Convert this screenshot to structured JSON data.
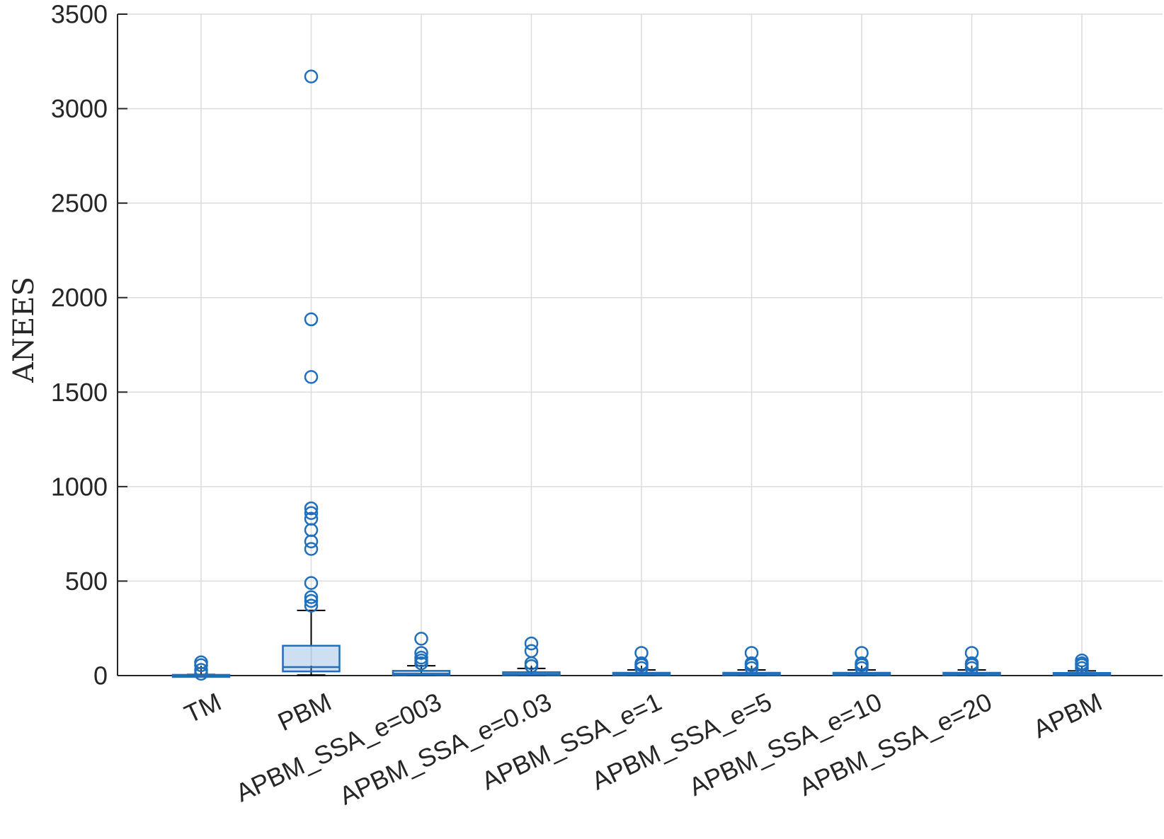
{
  "chart_data": {
    "type": "boxplot",
    "title": "",
    "xlabel": "",
    "ylabel": "ANEES",
    "ylim": [
      0,
      3500
    ],
    "yticks": [
      0,
      500,
      1000,
      1500,
      2000,
      2500,
      3000,
      3500
    ],
    "grid": true,
    "color": "#1f6fbd",
    "categories": [
      "TM",
      "PBM",
      "APBM_SSA_e=003",
      "APBM_SSA_e=0.03",
      "APBM_SSA_e=1",
      "APBM_SSA_e=5",
      "APBM_SSA_e=10",
      "APBM_SSA_e=20",
      "APBM"
    ],
    "boxes": [
      {
        "q1": 1,
        "median": 2,
        "q3": 4,
        "whisker_low": 0,
        "whisker_high": 6,
        "outliers": [
          10,
          30,
          55,
          70
        ]
      },
      {
        "q1": 22,
        "median": 45,
        "q3": 158,
        "whisker_low": 3,
        "whisker_high": 345,
        "outliers": [
          370,
          395,
          415,
          490,
          670,
          710,
          770,
          830,
          860,
          885,
          1580,
          1885,
          3170
        ]
      },
      {
        "q1": 3,
        "median": 10,
        "q3": 25,
        "whisker_low": 0,
        "whisker_high": 52,
        "outliers": [
          65,
          80,
          95,
          120,
          195
        ]
      },
      {
        "q1": 3,
        "median": 8,
        "q3": 18,
        "whisker_low": 0,
        "whisker_high": 38,
        "outliers": [
          50,
          65,
          130,
          170
        ]
      },
      {
        "q1": 3,
        "median": 7,
        "q3": 15,
        "whisker_low": 0,
        "whisker_high": 30,
        "outliers": [
          40,
          55,
          65,
          120
        ]
      },
      {
        "q1": 3,
        "median": 7,
        "q3": 15,
        "whisker_low": 0,
        "whisker_high": 30,
        "outliers": [
          40,
          55,
          65,
          120
        ]
      },
      {
        "q1": 3,
        "median": 7,
        "q3": 15,
        "whisker_low": 0,
        "whisker_high": 30,
        "outliers": [
          40,
          55,
          65,
          120
        ]
      },
      {
        "q1": 3,
        "median": 7,
        "q3": 15,
        "whisker_low": 0,
        "whisker_high": 30,
        "outliers": [
          40,
          55,
          65,
          120
        ]
      },
      {
        "q1": 3,
        "median": 6,
        "q3": 14,
        "whisker_low": 0,
        "whisker_high": 25,
        "outliers": [
          40,
          55,
          65,
          80
        ]
      }
    ]
  }
}
